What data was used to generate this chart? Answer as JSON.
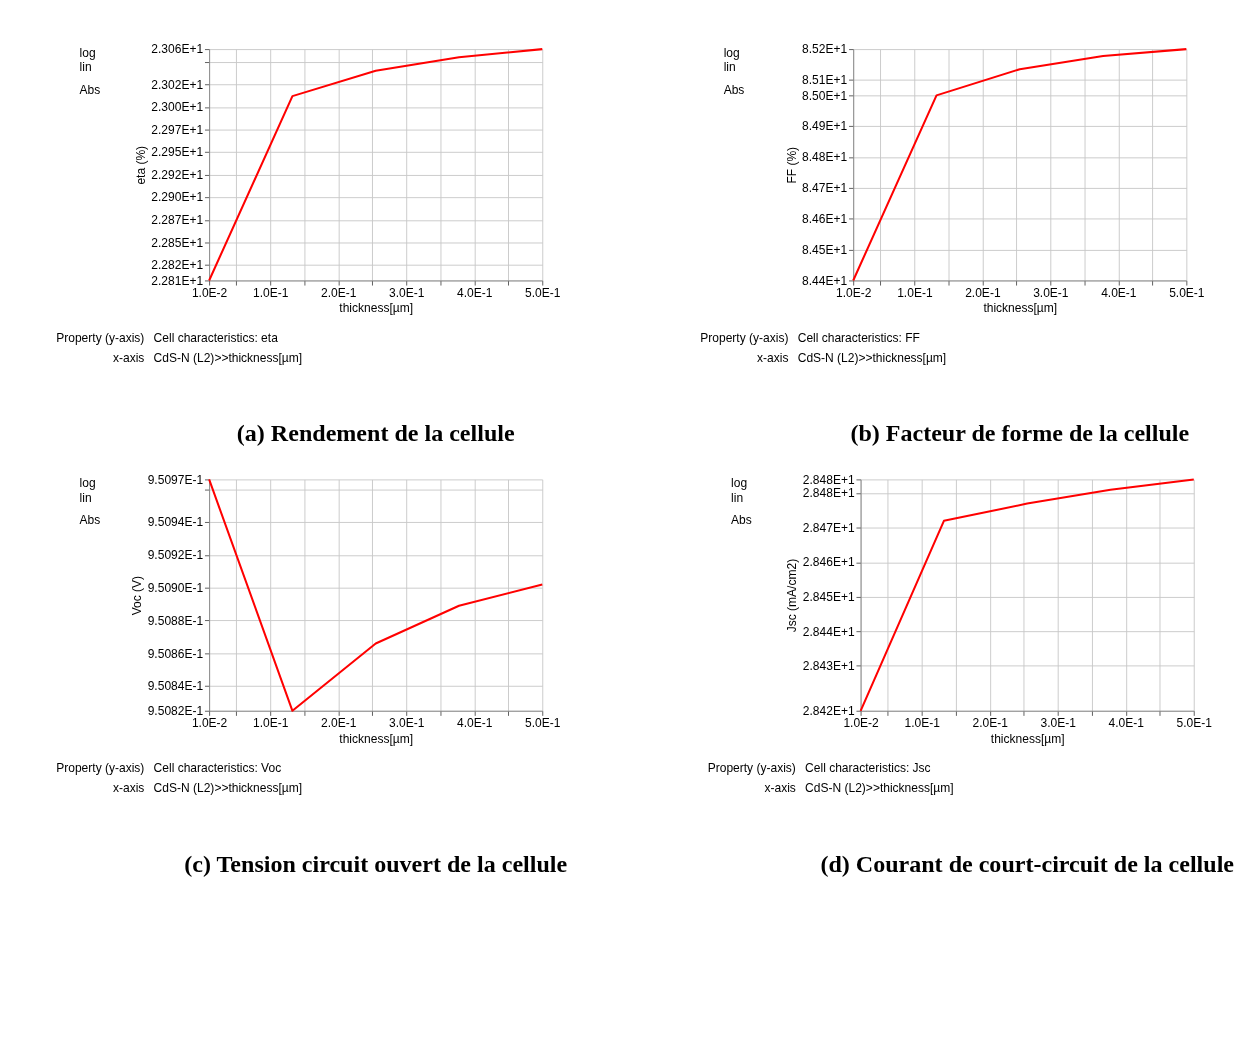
{
  "chart_data": [
    {
      "type": "line",
      "title": "(a) Rendement de la cellule",
      "xlabel": "thickness[µm]",
      "ylabel": "eta (%)",
      "x": [
        0.01,
        0.1325,
        0.255,
        0.3775,
        0.5
      ],
      "series": [
        {
          "color": "#ff0000",
          "values": [
            22.808,
            23.012,
            23.04,
            23.055,
            23.064
          ]
        }
      ],
      "xlim": [
        0.01,
        0.5
      ],
      "xticks": [
        {
          "value": 0.01,
          "label": "1.0E-2"
        },
        {
          "value": 0.05,
          "label": null
        },
        {
          "value": 0.1,
          "label": "1.0E-1"
        },
        {
          "value": 0.15,
          "label": null
        },
        {
          "value": 0.2,
          "label": "2.0E-1"
        },
        {
          "value": 0.25,
          "label": null
        },
        {
          "value": 0.3,
          "label": "3.0E-1"
        },
        {
          "value": 0.35,
          "label": null
        },
        {
          "value": 0.4,
          "label": "4.0E-1"
        },
        {
          "value": 0.45,
          "label": null
        },
        {
          "value": 0.5,
          "label": "5.0E-1"
        }
      ],
      "ylim": [
        22.808,
        23.064
      ],
      "yticks": [
        {
          "value": 22.808,
          "label": "2.281E+1"
        },
        {
          "value": 22.825,
          "label": "2.282E+1"
        },
        {
          "value": 22.85,
          "label": "2.285E+1"
        },
        {
          "value": 22.875,
          "label": "2.287E+1"
        },
        {
          "value": 22.9,
          "label": "2.290E+1"
        },
        {
          "value": 22.925,
          "label": "2.292E+1"
        },
        {
          "value": 22.95,
          "label": "2.295E+1"
        },
        {
          "value": 22.975,
          "label": "2.297E+1"
        },
        {
          "value": 23.0,
          "label": "2.300E+1"
        },
        {
          "value": 23.025,
          "label": "2.302E+1"
        },
        {
          "value": 23.05,
          "label": null
        },
        {
          "value": 23.064,
          "label": "2.306E+1"
        }
      ],
      "grid": true,
      "marker": "none",
      "line_style": "solid",
      "annotations": [
        "log",
        "lin",
        "Abs",
        "Property (y-axis)",
        "Cell characteristics: eta",
        "x-axis",
        "CdS-N (L2)>>thickness[µm]"
      ]
    },
    {
      "type": "line",
      "title": "(b) Facteur de forme de la cellule",
      "xlabel": "thickness[µm]",
      "ylabel": "FF (%)",
      "x": [
        0.01,
        0.1325,
        0.255,
        0.3775,
        0.5
      ],
      "series": [
        {
          "color": "#ff0000",
          "values": [
            84.4,
            85.0,
            85.085,
            85.128,
            85.15
          ]
        }
      ],
      "xlim": [
        0.01,
        0.5
      ],
      "xticks": [
        {
          "value": 0.01,
          "label": "1.0E-2"
        },
        {
          "value": 0.05,
          "label": null
        },
        {
          "value": 0.1,
          "label": "1.0E-1"
        },
        {
          "value": 0.15,
          "label": null
        },
        {
          "value": 0.2,
          "label": "2.0E-1"
        },
        {
          "value": 0.25,
          "label": null
        },
        {
          "value": 0.3,
          "label": "3.0E-1"
        },
        {
          "value": 0.35,
          "label": null
        },
        {
          "value": 0.4,
          "label": "4.0E-1"
        },
        {
          "value": 0.45,
          "label": null
        },
        {
          "value": 0.5,
          "label": "5.0E-1"
        }
      ],
      "ylim": [
        84.4,
        85.15
      ],
      "yticks": [
        {
          "value": 84.4,
          "label": "8.44E+1"
        },
        {
          "value": 84.5,
          "label": "8.45E+1"
        },
        {
          "value": 84.6,
          "label": "8.46E+1"
        },
        {
          "value": 84.7,
          "label": "8.47E+1"
        },
        {
          "value": 84.8,
          "label": "8.48E+1"
        },
        {
          "value": 84.9,
          "label": "8.49E+1"
        },
        {
          "value": 85.0,
          "label": "8.50E+1"
        },
        {
          "value": 85.05,
          "label": "8.51E+1"
        },
        {
          "value": 85.15,
          "label": "8.52E+1"
        }
      ],
      "grid": true,
      "marker": "none",
      "line_style": "solid",
      "annotations": [
        "log",
        "lin",
        "Abs",
        "Property (y-axis)",
        "Cell characteristics: FF",
        "x-axis",
        "CdS-N (L2)>>thickness[µm]"
      ]
    },
    {
      "type": "line",
      "title": "(c) Tension circuit ouvert de la cellule",
      "xlabel": "thickness[µm]",
      "ylabel": "Voc (V)",
      "x": [
        0.01,
        0.1325,
        0.255,
        0.3775,
        0.5
      ],
      "series": [
        {
          "color": "#ff0000",
          "values": [
            0.950966,
            0.950825,
            0.950866,
            0.950889,
            0.950902
          ]
        }
      ],
      "xlim": [
        0.01,
        0.5
      ],
      "xticks": [
        {
          "value": 0.01,
          "label": "1.0E-2"
        },
        {
          "value": 0.05,
          "label": null
        },
        {
          "value": 0.1,
          "label": "1.0E-1"
        },
        {
          "value": 0.15,
          "label": null
        },
        {
          "value": 0.2,
          "label": "2.0E-1"
        },
        {
          "value": 0.25,
          "label": null
        },
        {
          "value": 0.3,
          "label": "3.0E-1"
        },
        {
          "value": 0.35,
          "label": null
        },
        {
          "value": 0.4,
          "label": "4.0E-1"
        },
        {
          "value": 0.45,
          "label": null
        },
        {
          "value": 0.5,
          "label": "5.0E-1"
        }
      ],
      "ylim": [
        0.950825,
        0.950966
      ],
      "yticks": [
        {
          "value": 0.950825,
          "label": "9.5082E-1"
        },
        {
          "value": 0.95084,
          "label": "9.5084E-1"
        },
        {
          "value": 0.95086,
          "label": "9.5086E-1"
        },
        {
          "value": 0.95088,
          "label": "9.5088E-1"
        },
        {
          "value": 0.9509,
          "label": "9.5090E-1"
        },
        {
          "value": 0.95092,
          "label": "9.5092E-1"
        },
        {
          "value": 0.95094,
          "label": "9.5094E-1"
        },
        {
          "value": 0.95096,
          "label": null
        },
        {
          "value": 0.950966,
          "label": "9.5097E-1"
        }
      ],
      "grid": true,
      "marker": "none",
      "line_style": "solid",
      "annotations": [
        "log",
        "lin",
        "Abs",
        "Property (y-axis)",
        "Cell characteristics: Voc",
        "x-axis",
        "CdS-N (L2)>>thickness[µm]"
      ]
    },
    {
      "type": "line",
      "title": "(d) Courant de court-circuit de la cellule",
      "xlabel": "thickness[µm]",
      "ylabel": "Jsc (mA/cm2)",
      "x": [
        0.01,
        0.1325,
        0.255,
        0.3775,
        0.5
      ],
      "series": [
        {
          "color": "#ff0000",
          "values": [
            28.417,
            28.472,
            28.477,
            28.481,
            28.484
          ]
        }
      ],
      "xlim": [
        0.01,
        0.5
      ],
      "xticks": [
        {
          "value": 0.01,
          "label": "1.0E-2"
        },
        {
          "value": 0.05,
          "label": null
        },
        {
          "value": 0.1,
          "label": "1.0E-1"
        },
        {
          "value": 0.15,
          "label": null
        },
        {
          "value": 0.2,
          "label": "2.0E-1"
        },
        {
          "value": 0.25,
          "label": null
        },
        {
          "value": 0.3,
          "label": "3.0E-1"
        },
        {
          "value": 0.35,
          "label": null
        },
        {
          "value": 0.4,
          "label": "4.0E-1"
        },
        {
          "value": 0.45,
          "label": null
        },
        {
          "value": 0.5,
          "label": "5.0E-1"
        }
      ],
      "ylim": [
        28.417,
        28.484
      ],
      "yticks": [
        {
          "value": 28.417,
          "label": "2.842E+1"
        },
        {
          "value": 28.43,
          "label": "2.843E+1"
        },
        {
          "value": 28.44,
          "label": "2.844E+1"
        },
        {
          "value": 28.45,
          "label": "2.845E+1"
        },
        {
          "value": 28.46,
          "label": "2.846E+1"
        },
        {
          "value": 28.47,
          "label": "2.847E+1"
        },
        {
          "value": 28.48,
          "label": "2.848E+1"
        },
        {
          "value": 28.484,
          "label": "2.848E+1"
        }
      ],
      "grid": true,
      "marker": "none",
      "line_style": "solid",
      "annotations": [
        "log",
        "lin",
        "Abs",
        "Property (y-axis)",
        "Cell characteristics: Jsc",
        "x-axis",
        "CdS-N (L2)>>thickness[µm]"
      ]
    }
  ]
}
